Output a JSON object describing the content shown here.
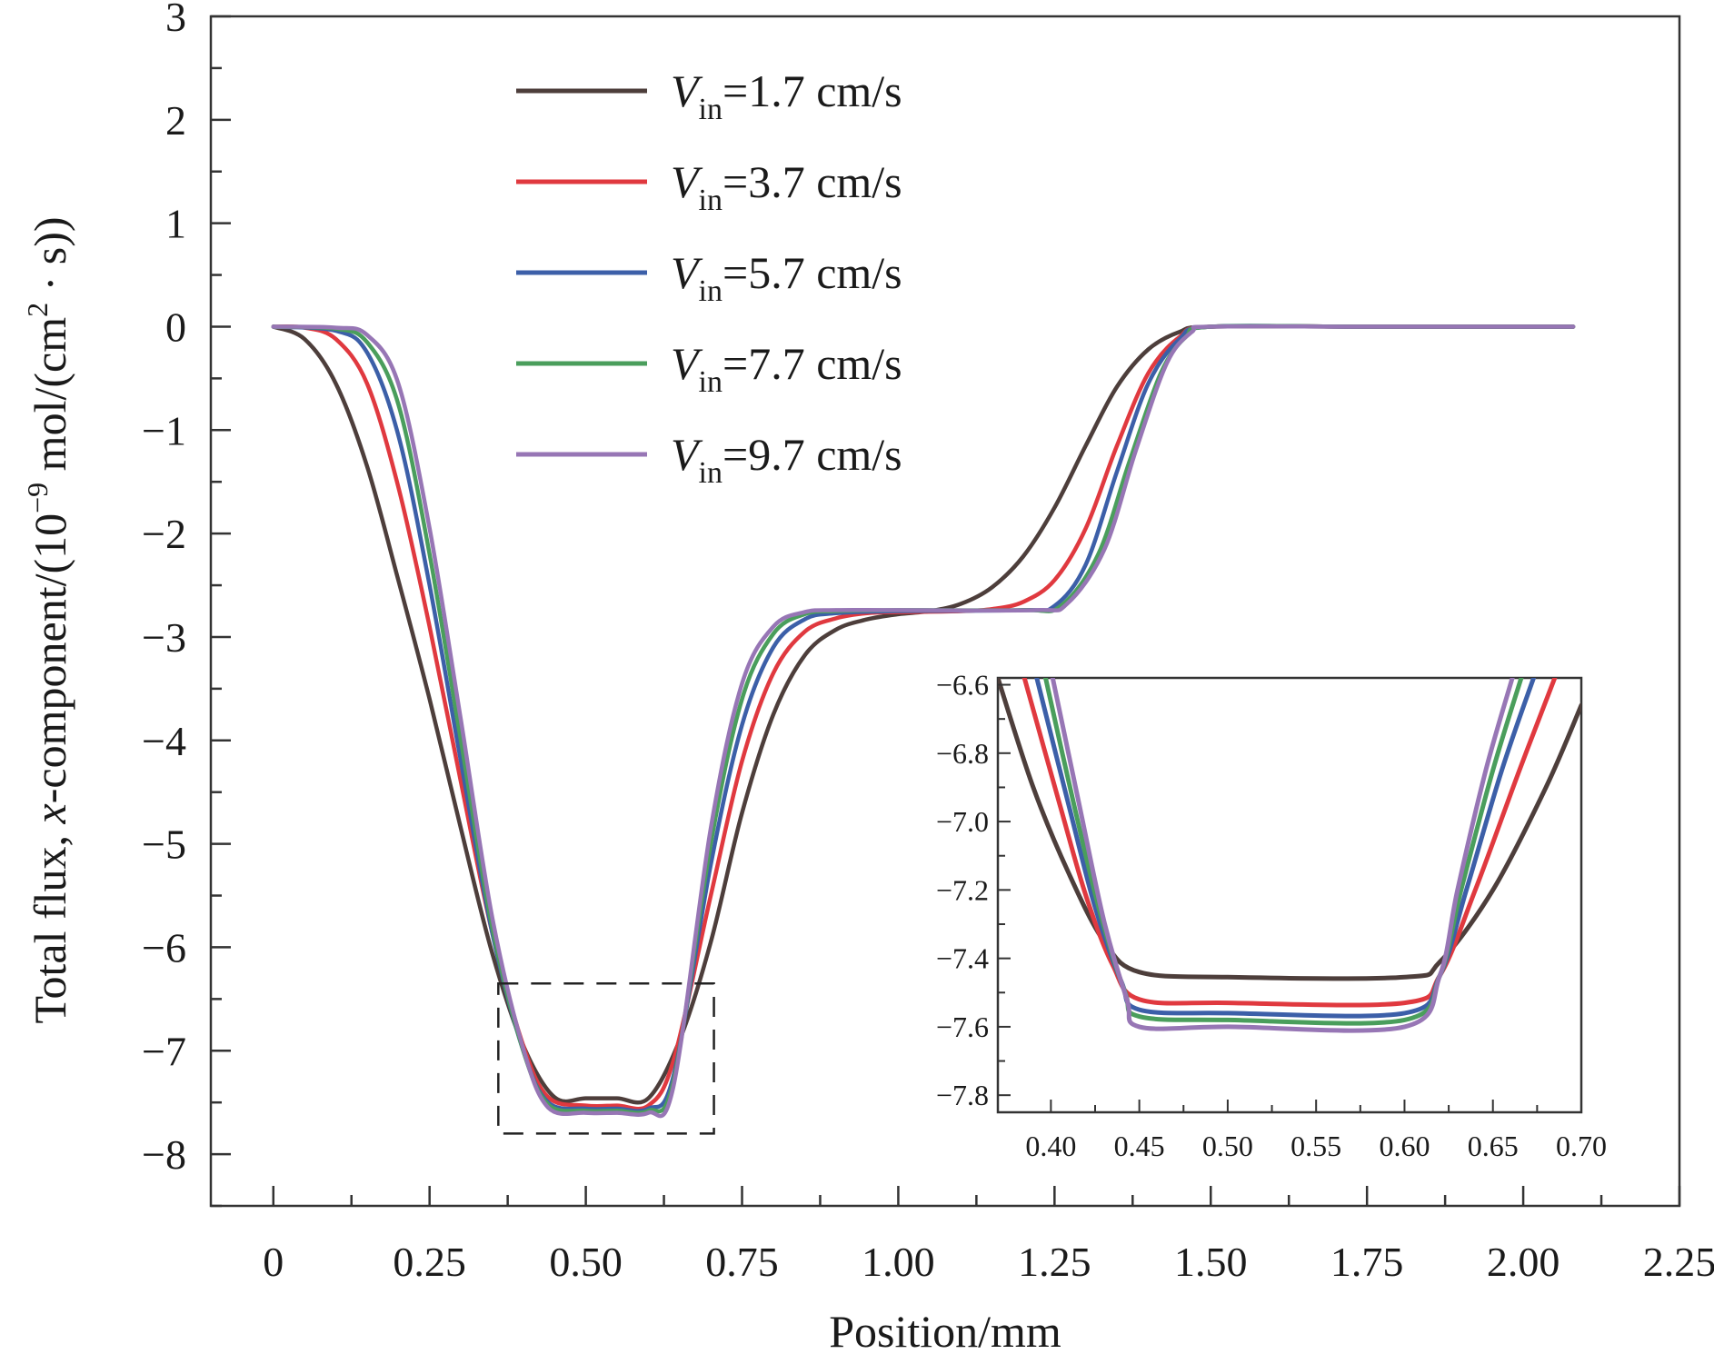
{
  "chart_data": {
    "type": "line",
    "title": "",
    "xlabel": "Position/mm",
    "ylabel": {
      "prefix": "Total flux, ",
      "italic": "x",
      "middle": "-component/(10",
      "sup1": "−9",
      "unit": " mol/(cm",
      "sup2": "2",
      "suffix": " · s))"
    },
    "xlim": [
      -0.1,
      2.25
    ],
    "ylim": [
      -8.5,
      3
    ],
    "x_ticks": [
      0,
      0.25,
      0.5,
      0.75,
      1.0,
      1.25,
      1.5,
      1.75,
      2.0,
      2.25
    ],
    "x_tick_labels": [
      "0",
      "0.25",
      "0.50",
      "0.75",
      "1.00",
      "1.25",
      "1.50",
      "1.75",
      "2.00",
      "2.25"
    ],
    "y_ticks": [
      3,
      2,
      1,
      0,
      -1,
      -2,
      -3,
      -4,
      -5,
      -6,
      -7,
      -8
    ],
    "y_tick_labels": [
      "3",
      "2",
      "1",
      "0",
      "−1",
      "−2",
      "−3",
      "−4",
      "−5",
      "−6",
      "−7",
      "−8"
    ],
    "grid": false,
    "legend_position": "top-center",
    "series": [
      {
        "name": "1.7 cm/s",
        "color": "#4d3e3b",
        "points": [
          [
            0,
            0
          ],
          [
            0.05,
            -0.12
          ],
          [
            0.1,
            -0.55
          ],
          [
            0.15,
            -1.35
          ],
          [
            0.2,
            -2.45
          ],
          [
            0.25,
            -3.6
          ],
          [
            0.3,
            -4.85
          ],
          [
            0.35,
            -6.05
          ],
          [
            0.4,
            -6.95
          ],
          [
            0.45,
            -7.45
          ],
          [
            0.5,
            -7.46
          ],
          [
            0.55,
            -7.46
          ],
          [
            0.6,
            -7.46
          ],
          [
            0.65,
            -6.9
          ],
          [
            0.7,
            -5.95
          ],
          [
            0.75,
            -4.7
          ],
          [
            0.8,
            -3.75
          ],
          [
            0.85,
            -3.18
          ],
          [
            0.9,
            -2.93
          ],
          [
            0.95,
            -2.83
          ],
          [
            1.0,
            -2.78
          ],
          [
            1.05,
            -2.75
          ],
          [
            1.1,
            -2.68
          ],
          [
            1.15,
            -2.52
          ],
          [
            1.2,
            -2.22
          ],
          [
            1.25,
            -1.75
          ],
          [
            1.3,
            -1.15
          ],
          [
            1.35,
            -0.58
          ],
          [
            1.4,
            -0.22
          ],
          [
            1.45,
            -0.05
          ],
          [
            1.5,
            0
          ],
          [
            1.75,
            0
          ],
          [
            2.08,
            0
          ]
        ]
      },
      {
        "name": "3.7 cm/s",
        "color": "#e0393f",
        "points": [
          [
            0,
            0
          ],
          [
            0.05,
            -0.01
          ],
          [
            0.1,
            -0.12
          ],
          [
            0.15,
            -0.55
          ],
          [
            0.2,
            -1.55
          ],
          [
            0.25,
            -2.9
          ],
          [
            0.3,
            -4.4
          ],
          [
            0.35,
            -5.85
          ],
          [
            0.4,
            -6.95
          ],
          [
            0.44,
            -7.45
          ],
          [
            0.5,
            -7.53
          ],
          [
            0.55,
            -7.53
          ],
          [
            0.6,
            -7.53
          ],
          [
            0.64,
            -7.1
          ],
          [
            0.7,
            -5.5
          ],
          [
            0.75,
            -4.2
          ],
          [
            0.8,
            -3.35
          ],
          [
            0.85,
            -2.95
          ],
          [
            0.9,
            -2.82
          ],
          [
            0.95,
            -2.77
          ],
          [
            1.0,
            -2.76
          ],
          [
            1.1,
            -2.75
          ],
          [
            1.15,
            -2.73
          ],
          [
            1.2,
            -2.66
          ],
          [
            1.25,
            -2.45
          ],
          [
            1.3,
            -1.95
          ],
          [
            1.35,
            -1.15
          ],
          [
            1.4,
            -0.45
          ],
          [
            1.45,
            -0.1
          ],
          [
            1.5,
            0
          ],
          [
            1.75,
            0
          ],
          [
            2.08,
            0
          ]
        ]
      },
      {
        "name": "5.7 cm/s",
        "color": "#3c5fa8",
        "points": [
          [
            0,
            0
          ],
          [
            0.1,
            -0.04
          ],
          [
            0.15,
            -0.25
          ],
          [
            0.2,
            -1.05
          ],
          [
            0.25,
            -2.5
          ],
          [
            0.3,
            -4.2
          ],
          [
            0.35,
            -5.85
          ],
          [
            0.4,
            -7.0
          ],
          [
            0.44,
            -7.5
          ],
          [
            0.5,
            -7.56
          ],
          [
            0.55,
            -7.56
          ],
          [
            0.6,
            -7.56
          ],
          [
            0.64,
            -7.25
          ],
          [
            0.7,
            -5.2
          ],
          [
            0.75,
            -3.85
          ],
          [
            0.8,
            -3.1
          ],
          [
            0.85,
            -2.83
          ],
          [
            0.9,
            -2.77
          ],
          [
            1.0,
            -2.75
          ],
          [
            1.2,
            -2.74
          ],
          [
            1.25,
            -2.7
          ],
          [
            1.3,
            -2.3
          ],
          [
            1.35,
            -1.4
          ],
          [
            1.4,
            -0.55
          ],
          [
            1.45,
            -0.12
          ],
          [
            1.5,
            0
          ],
          [
            1.75,
            0
          ],
          [
            2.08,
            0
          ]
        ]
      },
      {
        "name": "7.7 cm/s",
        "color": "#4a9e5c",
        "points": [
          [
            0,
            0
          ],
          [
            0.1,
            -0.02
          ],
          [
            0.15,
            -0.15
          ],
          [
            0.2,
            -0.75
          ],
          [
            0.25,
            -2.2
          ],
          [
            0.3,
            -4.0
          ],
          [
            0.35,
            -5.8
          ],
          [
            0.4,
            -7.0
          ],
          [
            0.44,
            -7.52
          ],
          [
            0.5,
            -7.58
          ],
          [
            0.55,
            -7.58
          ],
          [
            0.6,
            -7.58
          ],
          [
            0.64,
            -7.3
          ],
          [
            0.7,
            -5.0
          ],
          [
            0.75,
            -3.6
          ],
          [
            0.8,
            -2.97
          ],
          [
            0.85,
            -2.78
          ],
          [
            0.9,
            -2.75
          ],
          [
            1.0,
            -2.74
          ],
          [
            1.2,
            -2.74
          ],
          [
            1.26,
            -2.7
          ],
          [
            1.32,
            -2.2
          ],
          [
            1.37,
            -1.3
          ],
          [
            1.42,
            -0.45
          ],
          [
            1.46,
            -0.1
          ],
          [
            1.5,
            0
          ],
          [
            1.75,
            0
          ],
          [
            2.08,
            0
          ]
        ]
      },
      {
        "name": "9.7 cm/s",
        "color": "#9776b5",
        "points": [
          [
            0,
            0
          ],
          [
            0.1,
            -0.01
          ],
          [
            0.15,
            -0.08
          ],
          [
            0.2,
            -0.55
          ],
          [
            0.25,
            -1.95
          ],
          [
            0.3,
            -3.8
          ],
          [
            0.35,
            -5.7
          ],
          [
            0.4,
            -6.98
          ],
          [
            0.44,
            -7.55
          ],
          [
            0.5,
            -7.6
          ],
          [
            0.55,
            -7.6
          ],
          [
            0.6,
            -7.6
          ],
          [
            0.64,
            -7.35
          ],
          [
            0.7,
            -4.85
          ],
          [
            0.75,
            -3.45
          ],
          [
            0.8,
            -2.9
          ],
          [
            0.85,
            -2.76
          ],
          [
            0.9,
            -2.74
          ],
          [
            1.0,
            -2.74
          ],
          [
            1.22,
            -2.74
          ],
          [
            1.27,
            -2.68
          ],
          [
            1.33,
            -2.15
          ],
          [
            1.38,
            -1.2
          ],
          [
            1.43,
            -0.35
          ],
          [
            1.47,
            -0.05
          ],
          [
            1.5,
            0
          ],
          [
            1.75,
            0
          ],
          [
            2.08,
            0
          ]
        ]
      }
    ],
    "zoom_box": {
      "x": [
        0.36,
        0.705
      ],
      "y": [
        -7.8,
        -6.35
      ]
    },
    "inset": {
      "xlim": [
        0.37,
        0.7
      ],
      "ylim": [
        -7.85,
        -6.58
      ],
      "x_ticks": [
        0.4,
        0.45,
        0.5,
        0.55,
        0.6,
        0.65,
        0.7
      ],
      "x_tick_labels": [
        "0.40",
        "0.45",
        "0.50",
        "0.55",
        "0.60",
        "0.65",
        "0.70"
      ],
      "y_ticks": [
        -6.6,
        -6.8,
        -7.0,
        -7.2,
        -7.4,
        -7.6,
        -7.8
      ],
      "y_tick_labels": [
        "−6.6",
        "−6.8",
        "−7.0",
        "−7.2",
        "−7.4",
        "−7.6",
        "−7.8"
      ],
      "series": [
        {
          "name": "1.7 cm/s",
          "color": "#4d3e3b",
          "points": [
            [
              0.37,
              -6.58
            ],
            [
              0.39,
              -6.9
            ],
            [
              0.41,
              -7.15
            ],
            [
              0.43,
              -7.35
            ],
            [
              0.45,
              -7.44
            ],
            [
              0.5,
              -7.455
            ],
            [
              0.6,
              -7.455
            ],
            [
              0.62,
              -7.41
            ],
            [
              0.65,
              -7.2
            ],
            [
              0.68,
              -6.9
            ],
            [
              0.7,
              -6.66
            ]
          ]
        },
        {
          "name": "3.7 cm/s",
          "color": "#e0393f",
          "points": [
            [
              0.385,
              -6.58
            ],
            [
              0.405,
              -6.95
            ],
            [
              0.42,
              -7.22
            ],
            [
              0.435,
              -7.42
            ],
            [
              0.45,
              -7.52
            ],
            [
              0.5,
              -7.53
            ],
            [
              0.6,
              -7.53
            ],
            [
              0.62,
              -7.45
            ],
            [
              0.64,
              -7.2
            ],
            [
              0.665,
              -6.85
            ],
            [
              0.685,
              -6.58
            ]
          ]
        },
        {
          "name": "5.7 cm/s",
          "color": "#3c5fa8",
          "points": [
            [
              0.392,
              -6.58
            ],
            [
              0.41,
              -6.95
            ],
            [
              0.425,
              -7.25
            ],
            [
              0.44,
              -7.47
            ],
            [
              0.45,
              -7.55
            ],
            [
              0.5,
              -7.56
            ],
            [
              0.6,
              -7.56
            ],
            [
              0.62,
              -7.45
            ],
            [
              0.635,
              -7.2
            ],
            [
              0.655,
              -6.85
            ],
            [
              0.673,
              -6.58
            ]
          ]
        },
        {
          "name": "7.7 cm/s",
          "color": "#4a9e5c",
          "points": [
            [
              0.397,
              -6.58
            ],
            [
              0.413,
              -6.95
            ],
            [
              0.428,
              -7.27
            ],
            [
              0.442,
              -7.5
            ],
            [
              0.45,
              -7.57
            ],
            [
              0.5,
              -7.58
            ],
            [
              0.6,
              -7.58
            ],
            [
              0.62,
              -7.45
            ],
            [
              0.632,
              -7.2
            ],
            [
              0.65,
              -6.85
            ],
            [
              0.666,
              -6.58
            ]
          ]
        },
        {
          "name": "9.7 cm/s",
          "color": "#9776b5",
          "points": [
            [
              0.401,
              -6.58
            ],
            [
              0.416,
              -6.95
            ],
            [
              0.43,
              -7.29
            ],
            [
              0.443,
              -7.52
            ],
            [
              0.45,
              -7.6
            ],
            [
              0.5,
              -7.6
            ],
            [
              0.6,
              -7.6
            ],
            [
              0.62,
              -7.45
            ],
            [
              0.63,
              -7.2
            ],
            [
              0.646,
              -6.85
            ],
            [
              0.661,
              -6.58
            ]
          ]
        }
      ]
    }
  }
}
